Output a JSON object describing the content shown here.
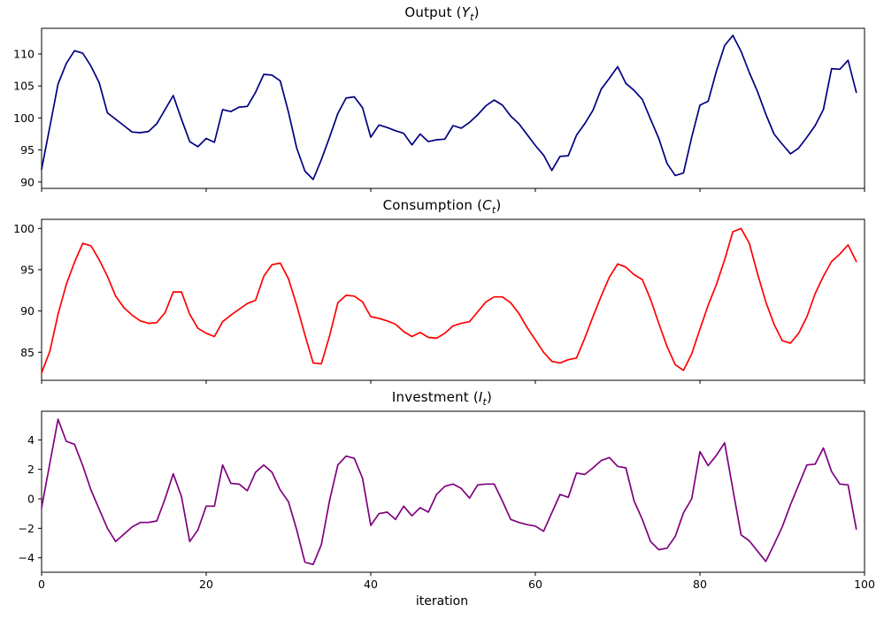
{
  "figure": {
    "background": "#ffffff",
    "xlabel": "iteration"
  },
  "chart_data": [
    {
      "name": "output",
      "type": "line",
      "title_prefix": "Output (",
      "title_var": "Y",
      "title_sub": "t",
      "title_suffix": ")",
      "color": "#000080",
      "xlabel": "",
      "x_start": 0,
      "x_step": 1,
      "xlim": [
        0,
        100
      ],
      "xticks": [
        0,
        20,
        40,
        60,
        80,
        100
      ],
      "show_xtick_labels": false,
      "ylim": [
        89.0,
        114.0
      ],
      "yticks": [
        90,
        95,
        100,
        105,
        110
      ],
      "grid": false,
      "legend": "none",
      "values": [
        92.0,
        98.6,
        105.3,
        108.5,
        110.5,
        110.1,
        108.1,
        105.5,
        100.8,
        99.8,
        98.8,
        97.8,
        97.7,
        97.9,
        99.1,
        101.3,
        103.5,
        99.8,
        96.3,
        95.5,
        96.8,
        96.2,
        101.3,
        101.0,
        101.7,
        101.8,
        104.0,
        106.8,
        106.7,
        105.8,
        100.9,
        95.3,
        91.7,
        90.4,
        93.5,
        97.0,
        100.7,
        103.1,
        103.3,
        101.6,
        97.0,
        98.9,
        98.5,
        98.0,
        97.6,
        95.8,
        97.5,
        96.3,
        96.6,
        96.7,
        98.8,
        98.4,
        99.3,
        100.5,
        101.9,
        102.8,
        102.0,
        100.3,
        99.1,
        97.4,
        95.7,
        94.2,
        91.8,
        94.0,
        94.1,
        97.3,
        99.1,
        101.2,
        104.5,
        106.2,
        108.0,
        105.4,
        104.3,
        102.9,
        99.8,
        96.8,
        92.9,
        91.0,
        91.4,
        97.0,
        102.0,
        102.6,
        107.3,
        111.3,
        112.9,
        110.4,
        107.1,
        104.1,
        100.6,
        97.5,
        95.9,
        94.4,
        95.3,
        97.0,
        98.8,
        101.3,
        107.7,
        107.6,
        109.0,
        104.0
      ]
    },
    {
      "name": "consumption",
      "type": "line",
      "title_prefix": "Consumption (",
      "title_var": "C",
      "title_sub": "t",
      "title_suffix": ")",
      "color": "#ff0000",
      "xlabel": "",
      "x_start": 0,
      "x_step": 1,
      "xlim": [
        0,
        100
      ],
      "xticks": [
        0,
        20,
        40,
        60,
        80,
        100
      ],
      "show_xtick_labels": false,
      "ylim": [
        81.6,
        101.1
      ],
      "yticks": [
        85,
        90,
        95,
        100
      ],
      "grid": false,
      "legend": "none",
      "values": [
        82.5,
        85.1,
        89.6,
        93.2,
        95.9,
        98.2,
        97.9,
        96.2,
        94.2,
        91.8,
        90.4,
        89.5,
        88.8,
        88.5,
        88.6,
        89.8,
        92.3,
        92.3,
        89.6,
        87.9,
        87.3,
        86.9,
        88.7,
        89.5,
        90.2,
        90.9,
        91.3,
        94.2,
        95.6,
        95.8,
        93.9,
        90.7,
        87.1,
        83.7,
        83.6,
        87.0,
        91.0,
        91.9,
        91.8,
        91.1,
        89.3,
        89.1,
        88.8,
        88.4,
        87.5,
        86.9,
        87.4,
        86.8,
        86.7,
        87.3,
        88.2,
        88.5,
        88.7,
        89.9,
        91.1,
        91.7,
        91.7,
        91.0,
        89.7,
        88.0,
        86.5,
        85.0,
        83.9,
        83.7,
        84.1,
        84.3,
        86.7,
        89.3,
        91.8,
        94.1,
        95.7,
        95.3,
        94.4,
        93.8,
        91.4,
        88.5,
        85.7,
        83.5,
        82.8,
        84.8,
        87.8,
        90.7,
        93.2,
        96.2,
        99.6,
        100.0,
        98.2,
        94.5,
        91.1,
        88.4,
        86.4,
        86.1,
        87.3,
        89.3,
        92.1,
        94.2,
        96.0,
        96.9,
        98.0,
        96.0
      ]
    },
    {
      "name": "investment",
      "type": "line",
      "title_prefix": "Investment (",
      "title_var": "I",
      "title_sub": "t",
      "title_suffix": ")",
      "color": "#800080",
      "xlabel": "iteration",
      "x_start": 0,
      "x_step": 1,
      "xlim": [
        0,
        100
      ],
      "xticks": [
        0,
        20,
        40,
        60,
        80,
        100
      ],
      "show_xtick_labels": true,
      "ylim": [
        -4.98,
        5.94
      ],
      "yticks": [
        -4,
        -2,
        0,
        2,
        4
      ],
      "grid": false,
      "legend": "none",
      "values": [
        -0.6,
        2.4,
        5.4,
        3.9,
        3.7,
        2.25,
        0.6,
        -0.7,
        -2.0,
        -2.9,
        -2.4,
        -1.9,
        -1.6,
        -1.6,
        -1.5,
        0.0,
        1.7,
        0.15,
        -2.9,
        -2.1,
        -0.5,
        -0.5,
        2.3,
        1.05,
        1.0,
        0.55,
        1.8,
        2.3,
        1.8,
        0.6,
        -0.2,
        -2.1,
        -4.3,
        -4.45,
        -3.1,
        -0.1,
        2.3,
        2.9,
        2.75,
        1.4,
        -1.8,
        -1.0,
        -0.9,
        -1.4,
        -0.5,
        -1.15,
        -0.6,
        -0.9,
        0.3,
        0.85,
        1.0,
        0.7,
        0.05,
        0.95,
        1.0,
        1.0,
        -0.15,
        -1.4,
        -1.6,
        -1.75,
        -1.85,
        -2.2,
        -0.95,
        0.3,
        0.1,
        1.75,
        1.65,
        2.1,
        2.6,
        2.8,
        2.2,
        2.1,
        -0.15,
        -1.4,
        -2.9,
        -3.45,
        -3.35,
        -2.55,
        -0.95,
        0.0,
        3.2,
        2.25,
        2.95,
        3.8,
        0.65,
        -2.45,
        -2.85,
        -3.55,
        -4.25,
        -3.1,
        -1.9,
        -0.4,
        0.95,
        2.3,
        2.35,
        3.45,
        1.85,
        1.0,
        0.95,
        -2.05
      ]
    }
  ]
}
